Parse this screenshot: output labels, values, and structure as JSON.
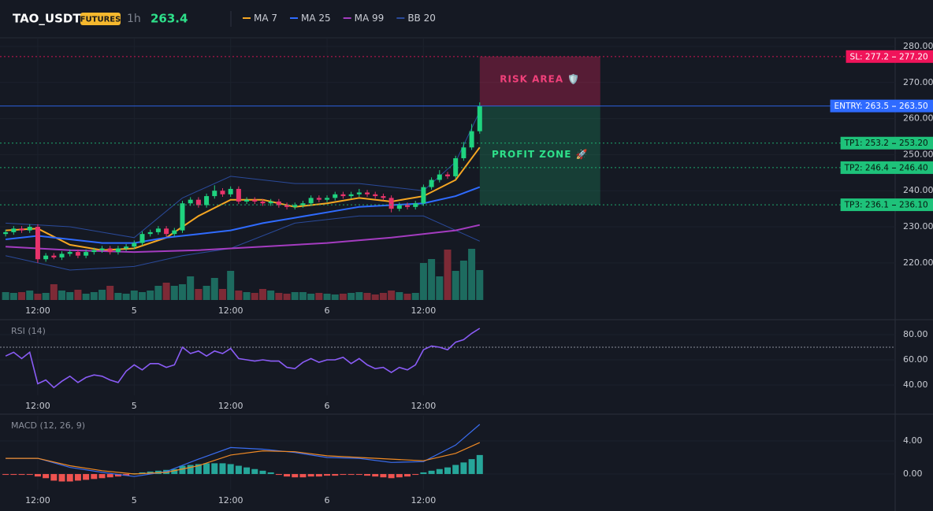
{
  "header": {
    "symbol": "TAO_USDT",
    "badge": "FUTURES",
    "interval": "1h",
    "last_price": "263.4"
  },
  "chart_data": [
    {
      "type": "candlestick",
      "xlim": [
        -0.7,
        110.7
      ],
      "xticks": [
        {
          "value": 4,
          "label": "12:00"
        },
        {
          "value": 16,
          "label": "5"
        },
        {
          "value": 28,
          "label": "12:00"
        },
        {
          "value": 40,
          "label": "6"
        },
        {
          "value": 52,
          "label": "12:00"
        }
      ],
      "ylim": [
        209.7,
        282.4
      ],
      "yticks": [
        {
          "value": 220,
          "label": "220.00"
        },
        {
          "value": 230,
          "label": "230.00"
        },
        {
          "value": 240,
          "label": "240.00"
        },
        {
          "value": 250,
          "label": "250.00"
        },
        {
          "value": 260,
          "label": "260.00"
        },
        {
          "value": 270,
          "label": "270.00"
        },
        {
          "value": 280,
          "label": "280.00"
        }
      ],
      "x": [
        0,
        1,
        2,
        3,
        4,
        5,
        6,
        7,
        8,
        9,
        10,
        11,
        12,
        13,
        14,
        15,
        16,
        17,
        18,
        19,
        20,
        21,
        22,
        23,
        24,
        25,
        26,
        27,
        28,
        29,
        30,
        31,
        32,
        33,
        34,
        35,
        36,
        37,
        38,
        39,
        40,
        41,
        42,
        43,
        44,
        45,
        46,
        47,
        48,
        49,
        50,
        51,
        52,
        53,
        54,
        55,
        56,
        57,
        58,
        59
      ],
      "open": [
        228,
        228.5,
        229.5,
        229,
        230,
        221,
        222,
        221.5,
        222.5,
        223,
        222,
        223,
        223.5,
        224,
        223,
        224,
        224.5,
        225.5,
        228,
        228.5,
        229.5,
        228,
        229,
        236.5,
        237.5,
        236,
        238.5,
        240,
        239,
        240.5,
        237,
        237.5,
        237,
        236.5,
        237,
        236,
        235.5,
        236,
        236.5,
        238,
        237.5,
        238,
        239,
        238.5,
        239,
        239.5,
        239,
        238.5,
        238,
        235,
        236,
        235.5,
        236.5,
        241,
        243,
        244.5,
        244,
        249,
        252,
        256.5
      ],
      "high": [
        229.2,
        230.2,
        230.2,
        230.7,
        230.7,
        222.7,
        222.7,
        223.2,
        223.7,
        223.7,
        223.7,
        224.2,
        224.7,
        224.7,
        224.7,
        225.2,
        226.2,
        228.7,
        229.2,
        230.2,
        230.2,
        229.7,
        237.2,
        238.2,
        238.2,
        239.2,
        241.5,
        240.7,
        241.2,
        241.2,
        238.2,
        238.2,
        237.7,
        237.7,
        237.7,
        236.7,
        236.7,
        237.2,
        238.7,
        238.7,
        238.7,
        239.7,
        239.7,
        239.7,
        240.5,
        240.2,
        239.7,
        239.2,
        238.7,
        236.7,
        236.7,
        237.2,
        241.7,
        243.7,
        245.7,
        245.2,
        249.7,
        253.5,
        258.5,
        264.5
      ],
      "low": [
        227.3,
        227.8,
        228.3,
        228.3,
        220,
        220.3,
        221,
        220.8,
        221.8,
        221.3,
        221.3,
        222.3,
        222.8,
        222.3,
        222.3,
        223.3,
        223.8,
        224.8,
        227.3,
        227.8,
        227.3,
        227.3,
        228.3,
        235.8,
        235.3,
        235.3,
        237.8,
        238.3,
        238.3,
        236.3,
        236.3,
        236.3,
        235.8,
        235.8,
        235.3,
        234.8,
        234.8,
        235.3,
        235.8,
        236.8,
        236.8,
        237.3,
        237.8,
        237.8,
        238.3,
        238.3,
        237.8,
        237.3,
        234,
        234.3,
        234.8,
        234.8,
        235.8,
        240.3,
        242.3,
        243.3,
        243.3,
        248.3,
        251.3,
        255.8
      ],
      "close": [
        228.5,
        229.5,
        229,
        230,
        221,
        222,
        221.5,
        222.5,
        223,
        222,
        223,
        223.5,
        224,
        223,
        224,
        224.5,
        225.5,
        228,
        228.5,
        229.5,
        228,
        229,
        236.5,
        237.5,
        236,
        238.5,
        240,
        239,
        240.5,
        237,
        237.5,
        237,
        236.5,
        237,
        236,
        235.5,
        236,
        236.5,
        238,
        237.5,
        238,
        239,
        238.5,
        239,
        239.5,
        239,
        238.5,
        238,
        235,
        236,
        235.5,
        236.5,
        241,
        243,
        244.5,
        244,
        249,
        252,
        256.5,
        263.5
      ],
      "up_color": "#1fd37f",
      "down_color": "#e8336b",
      "volume": {
        "ylim": [
          0,
          333
        ],
        "up_color": "#1d6b5f",
        "down_color": "#7d2a36",
        "values": [
          10,
          9,
          10,
          12,
          8,
          9,
          20,
          12,
          10,
          13,
          8,
          10,
          13,
          18,
          9,
          8,
          12,
          10,
          12,
          18,
          22,
          18,
          20,
          30,
          14,
          18,
          28,
          14,
          37,
          12,
          10,
          9,
          14,
          12,
          9,
          8,
          10,
          10,
          8,
          9,
          8,
          7,
          8,
          9,
          10,
          9,
          7,
          9,
          12,
          10,
          8,
          9,
          47,
          52,
          30,
          64,
          37,
          50,
          65,
          38
        ]
      },
      "series": [
        {
          "name": "MA 7",
          "color": "#f5a623",
          "x": [
            0,
            4,
            8,
            12,
            16,
            20,
            24,
            28,
            32,
            36,
            40,
            44,
            48,
            52,
            56,
            59
          ],
          "values": [
            229,
            229.5,
            225,
            223.5,
            224,
            227,
            233,
            237.5,
            237.5,
            235.5,
            236.5,
            238,
            237,
            238.5,
            243,
            252
          ]
        },
        {
          "name": "MA 25",
          "color": "#2f6bff",
          "x": [
            0,
            4,
            8,
            12,
            16,
            20,
            24,
            28,
            32,
            36,
            40,
            44,
            48,
            52,
            56,
            59
          ],
          "values": [
            226.5,
            227.5,
            226.5,
            225.5,
            225.5,
            227,
            228,
            229,
            231,
            232.5,
            234,
            235.5,
            236,
            236.5,
            238.5,
            241
          ]
        },
        {
          "name": "MA 99",
          "color": "#a43cc0",
          "x": [
            0,
            8,
            16,
            24,
            32,
            40,
            48,
            56,
            59
          ],
          "values": [
            224.5,
            223.5,
            223,
            223.5,
            224.5,
            225.5,
            227,
            229,
            230.5
          ]
        }
      ],
      "bands": {
        "name": "BB 20",
        "color": "#2a4a9a",
        "x": [
          0,
          8,
          16,
          22,
          28,
          36,
          44,
          52,
          56,
          59
        ],
        "upper": [
          231,
          230,
          227,
          238,
          244,
          242,
          242,
          240,
          248,
          262
        ],
        "lower": [
          222,
          218,
          219,
          222,
          224,
          231,
          233,
          233,
          229,
          226
        ]
      },
      "levels": [
        {
          "label": "SL: 277.2",
          "value": 277.2,
          "value_label": "277.20",
          "color": "#f0145a",
          "text_color": "#ffffff",
          "style": "dotted"
        },
        {
          "label": "ENTRY: 263.5",
          "value": 263.5,
          "value_label": "263.50",
          "color": "#2f6bff",
          "text_color": "#ffffff",
          "style": "solid"
        },
        {
          "label": "TP1: 253.2",
          "value": 253.2,
          "value_label": "253.20",
          "color": "#1ec27a",
          "text_color": "#08160f",
          "style": "dotted"
        },
        {
          "label": "TP2: 246.4",
          "value": 246.4,
          "value_label": "246.40",
          "color": "#1ec27a",
          "text_color": "#08160f",
          "style": "dotted"
        },
        {
          "label": "TP3: 236.1",
          "value": 236.1,
          "value_label": "236.10",
          "color": "#1ec27a",
          "text_color": "#08160f",
          "style": "dotted"
        }
      ],
      "zones": [
        {
          "label": "RISK AREA 🛡️",
          "ylim": [
            263.5,
            277.2
          ],
          "xrange": [
            59,
            74
          ],
          "color": "#e0245e",
          "text_color": "#f0407a"
        },
        {
          "label": "PROFIT ZONE 🚀",
          "ylim": [
            236.1,
            263.5
          ],
          "xrange": [
            59,
            74
          ],
          "color": "#1ec27a",
          "text_color": "#2ee08a"
        }
      ]
    },
    {
      "type": "line",
      "title": "RSI (14)",
      "xlim": [
        -0.7,
        110.7
      ],
      "xticks": [
        {
          "value": 4,
          "label": "12:00"
        },
        {
          "value": 16,
          "label": "5"
        },
        {
          "value": 28,
          "label": "12:00"
        },
        {
          "value": 40,
          "label": "6"
        },
        {
          "value": 52,
          "label": "12:00"
        }
      ],
      "ylim": [
        31.9,
        90.6
      ],
      "yticks": [
        {
          "value": 40,
          "label": "40.00"
        },
        {
          "value": 60,
          "label": "60.00"
        },
        {
          "value": 80,
          "label": "80.00"
        }
      ],
      "reference_line": 70,
      "color": "#8a5cf6",
      "x": [
        0,
        1,
        2,
        3,
        4,
        5,
        6,
        7,
        8,
        9,
        10,
        11,
        12,
        13,
        14,
        15,
        16,
        17,
        18,
        19,
        20,
        21,
        22,
        23,
        24,
        25,
        26,
        27,
        28,
        29,
        30,
        31,
        32,
        33,
        34,
        35,
        36,
        37,
        38,
        39,
        40,
        41,
        42,
        43,
        44,
        45,
        46,
        47,
        48,
        49,
        50,
        51,
        52,
        53,
        54,
        55,
        56,
        57,
        58,
        59
      ],
      "values": [
        63,
        66,
        61,
        66,
        41,
        44,
        38,
        43,
        47,
        42,
        46,
        48,
        47,
        44,
        42,
        51,
        56,
        52,
        57,
        57,
        54,
        56,
        70,
        65,
        67,
        63,
        67,
        65,
        69,
        61,
        60,
        59,
        60,
        59,
        59,
        54,
        53,
        58,
        61,
        58,
        60,
        60,
        62,
        57,
        61,
        56,
        53,
        54,
        50,
        54,
        52,
        56,
        68,
        71,
        70,
        68,
        74,
        76,
        81,
        85
      ]
    },
    {
      "type": "macd",
      "title": "MACD (12, 26, 9)",
      "xlim": [
        -0.7,
        110.7
      ],
      "xticks": [
        {
          "value": 4,
          "label": "12:00"
        },
        {
          "value": 16,
          "label": "5"
        },
        {
          "value": 28,
          "label": "12:00"
        },
        {
          "value": 40,
          "label": "6"
        },
        {
          "value": 52,
          "label": "12:00"
        }
      ],
      "ylim": [
        -1.9,
        7.05
      ],
      "yticks": [
        {
          "value": 0,
          "label": "0.00"
        },
        {
          "value": 4,
          "label": "4.00"
        }
      ],
      "x": [
        0,
        1,
        2,
        3,
        4,
        5,
        6,
        7,
        8,
        9,
        10,
        11,
        12,
        13,
        14,
        15,
        16,
        17,
        18,
        19,
        20,
        21,
        22,
        23,
        24,
        25,
        26,
        27,
        28,
        29,
        30,
        31,
        32,
        33,
        34,
        35,
        36,
        37,
        38,
        39,
        40,
        41,
        42,
        43,
        44,
        45,
        46,
        47,
        48,
        49,
        50,
        51,
        52,
        53,
        54,
        55,
        56,
        57,
        58,
        59
      ],
      "histogram": [
        -0.1,
        -0.1,
        -0.1,
        -0.1,
        -0.3,
        -0.5,
        -0.8,
        -0.9,
        -0.9,
        -0.8,
        -0.7,
        -0.6,
        -0.5,
        -0.4,
        -0.3,
        -0.2,
        0.1,
        0.2,
        0.3,
        0.4,
        0.5,
        0.6,
        1.0,
        1.1,
        1.2,
        1.3,
        1.3,
        1.3,
        1.2,
        1.0,
        0.8,
        0.6,
        0.4,
        0.2,
        -0.1,
        -0.3,
        -0.4,
        -0.4,
        -0.3,
        -0.3,
        -0.2,
        -0.2,
        -0.1,
        -0.1,
        -0.1,
        -0.2,
        -0.3,
        -0.4,
        -0.5,
        -0.4,
        -0.3,
        -0.1,
        0.2,
        0.4,
        0.6,
        0.8,
        1.1,
        1.4,
        1.8,
        2.3
      ],
      "up_color": "#26a69a",
      "down_color": "#ef5350",
      "lines": [
        {
          "color": "#3a6df0",
          "x": [
            0,
            4,
            8,
            12,
            16,
            20,
            24,
            28,
            32,
            36,
            40,
            44,
            48,
            52,
            56,
            59
          ],
          "values": [
            1.9,
            1.9,
            0.8,
            0.2,
            -0.3,
            0.3,
            1.8,
            3.2,
            3.0,
            2.6,
            2.0,
            1.9,
            1.4,
            1.5,
            3.5,
            6.0
          ]
        },
        {
          "color": "#f08a24",
          "x": [
            0,
            4,
            8,
            12,
            16,
            20,
            24,
            28,
            32,
            36,
            40,
            44,
            48,
            52,
            56,
            59
          ],
          "values": [
            1.9,
            1.9,
            1.0,
            0.4,
            0.0,
            0.2,
            1.0,
            2.3,
            2.8,
            2.7,
            2.2,
            2.0,
            1.8,
            1.6,
            2.5,
            3.8
          ]
        }
      ]
    }
  ]
}
